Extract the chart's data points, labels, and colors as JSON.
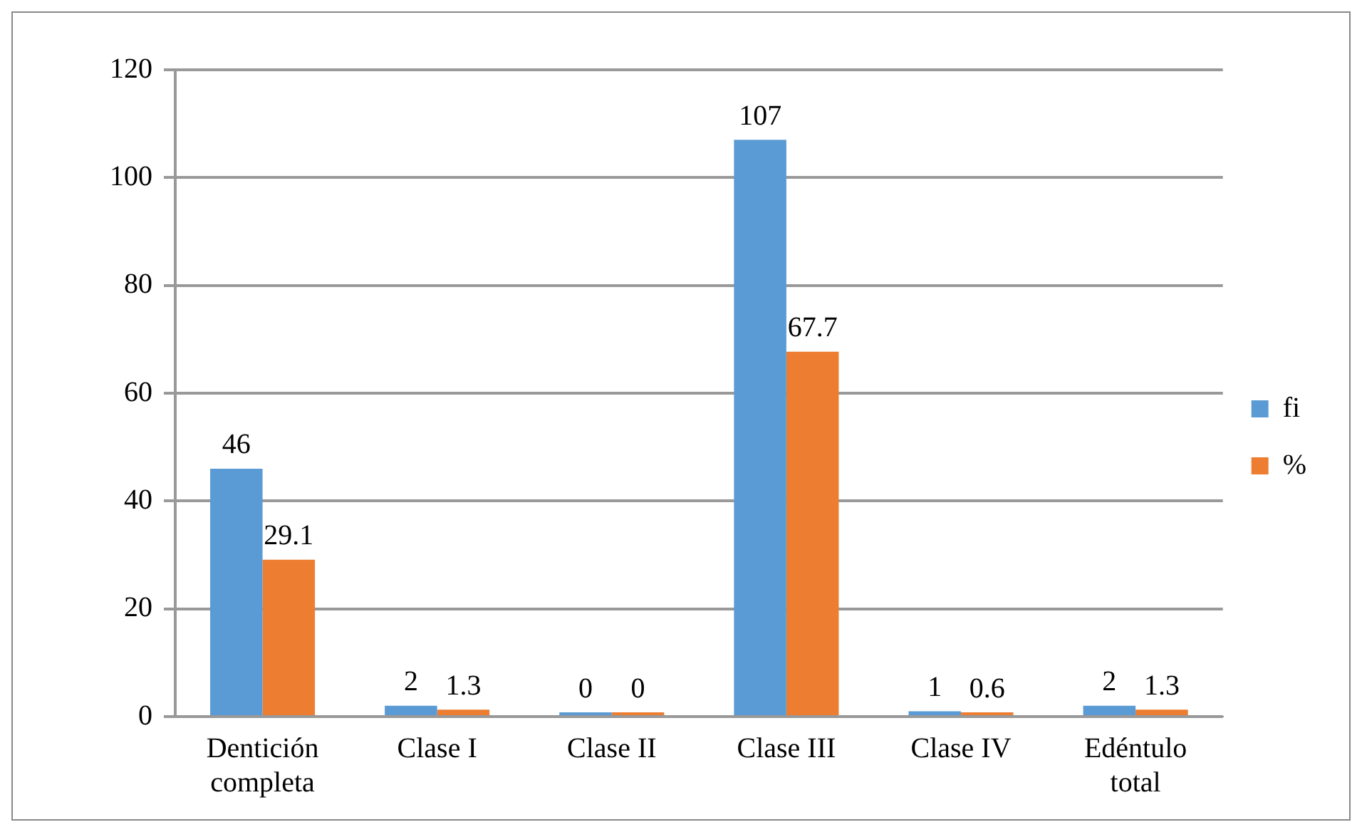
{
  "chart_data": {
    "type": "bar",
    "categories": [
      "Dentición completa",
      "Clase I",
      "Clase II",
      "Clase III",
      "Clase IV",
      "Edéntulo total"
    ],
    "series": [
      {
        "name": "fi",
        "color": "#5b9bd5",
        "values": [
          46,
          2,
          0,
          107,
          1,
          2
        ]
      },
      {
        "name": "%",
        "color": "#ed7d31",
        "values": [
          29.1,
          1.3,
          0,
          67.7,
          0.6,
          1.3
        ]
      }
    ],
    "ylim": [
      0,
      120
    ],
    "yticks": [
      0,
      20,
      40,
      60,
      80,
      100,
      120
    ],
    "grid": "y",
    "legend": "right",
    "data_labels": true
  }
}
